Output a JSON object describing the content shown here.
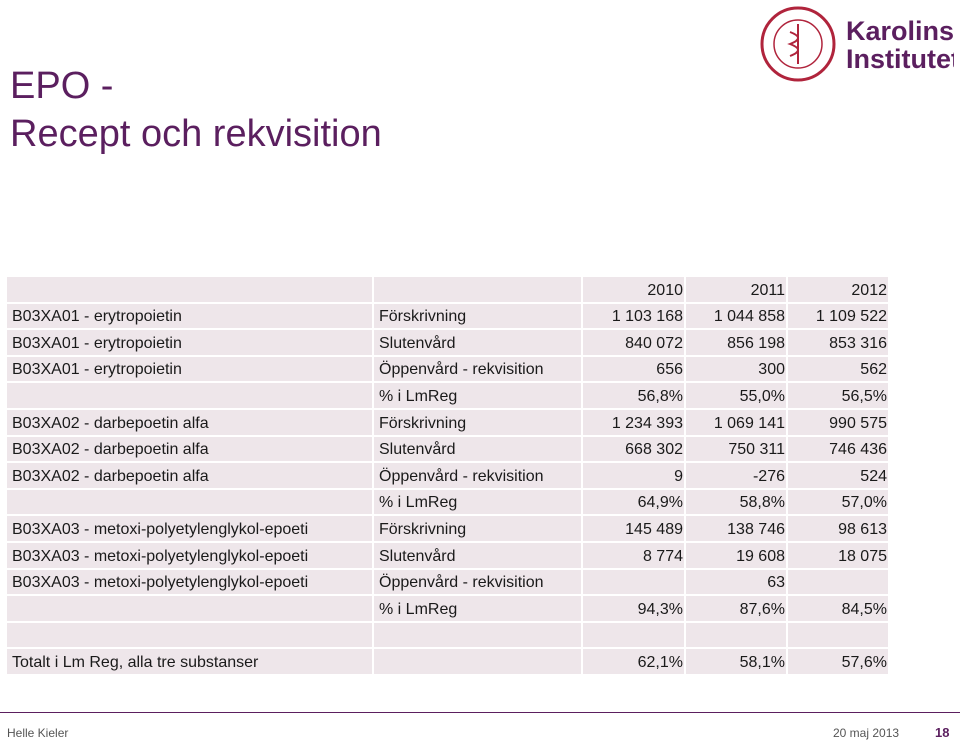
{
  "header": {
    "title_line1": "EPO -",
    "title_line2": "Recept och rekvisition",
    "logo_text_line1": "Karolinska",
    "logo_text_line2": "Institutet"
  },
  "table": {
    "rows": [
      [
        null,
        null,
        "2010",
        "2011",
        "2012"
      ],
      [
        "B03XA01 - erytropoietin",
        "Förskrivning",
        "1 103 168",
        "1 044 858",
        "1 109 522"
      ],
      [
        "B03XA01 - erytropoietin",
        "Slutenvård",
        "840 072",
        "856 198",
        "853 316"
      ],
      [
        "B03XA01 - erytropoietin",
        "Öppenvård - rekvisition",
        "656",
        "300",
        "562"
      ],
      [
        null,
        "% i LmReg",
        "56,8%",
        "55,0%",
        "56,5%"
      ],
      [
        "B03XA02 - darbepoetin alfa",
        "Förskrivning",
        "1 234 393",
        "1 069 141",
        "990 575"
      ],
      [
        "B03XA02 - darbepoetin alfa",
        "Slutenvård",
        "668 302",
        "750 311",
        "746 436"
      ],
      [
        "B03XA02 - darbepoetin alfa",
        "Öppenvård - rekvisition",
        "9",
        "-276",
        "524"
      ],
      [
        null,
        "% i LmReg",
        "64,9%",
        "58,8%",
        "57,0%"
      ],
      [
        "B03XA03 - metoxi-polyetylenglykol-epoeti",
        "Förskrivning",
        "145 489",
        "138 746",
        "98 613"
      ],
      [
        "B03XA03 - metoxi-polyetylenglykol-epoeti",
        "Slutenvård",
        "8 774",
        "19 608",
        "18 075"
      ],
      [
        "B03XA03 - metoxi-polyetylenglykol-epoeti",
        "Öppenvård - rekvisition",
        null,
        "63",
        null
      ],
      [
        null,
        "% i LmReg",
        "94,3%",
        "87,6%",
        "84,5%"
      ],
      [
        null,
        null,
        null,
        null,
        null
      ],
      [
        "Totalt i Lm Reg, alla tre substanser",
        null,
        "62,1%",
        "58,1%",
        "57,6%"
      ]
    ]
  },
  "footer": {
    "author": "Helle Kieler",
    "date": "20 maj 2013",
    "page": "18"
  }
}
